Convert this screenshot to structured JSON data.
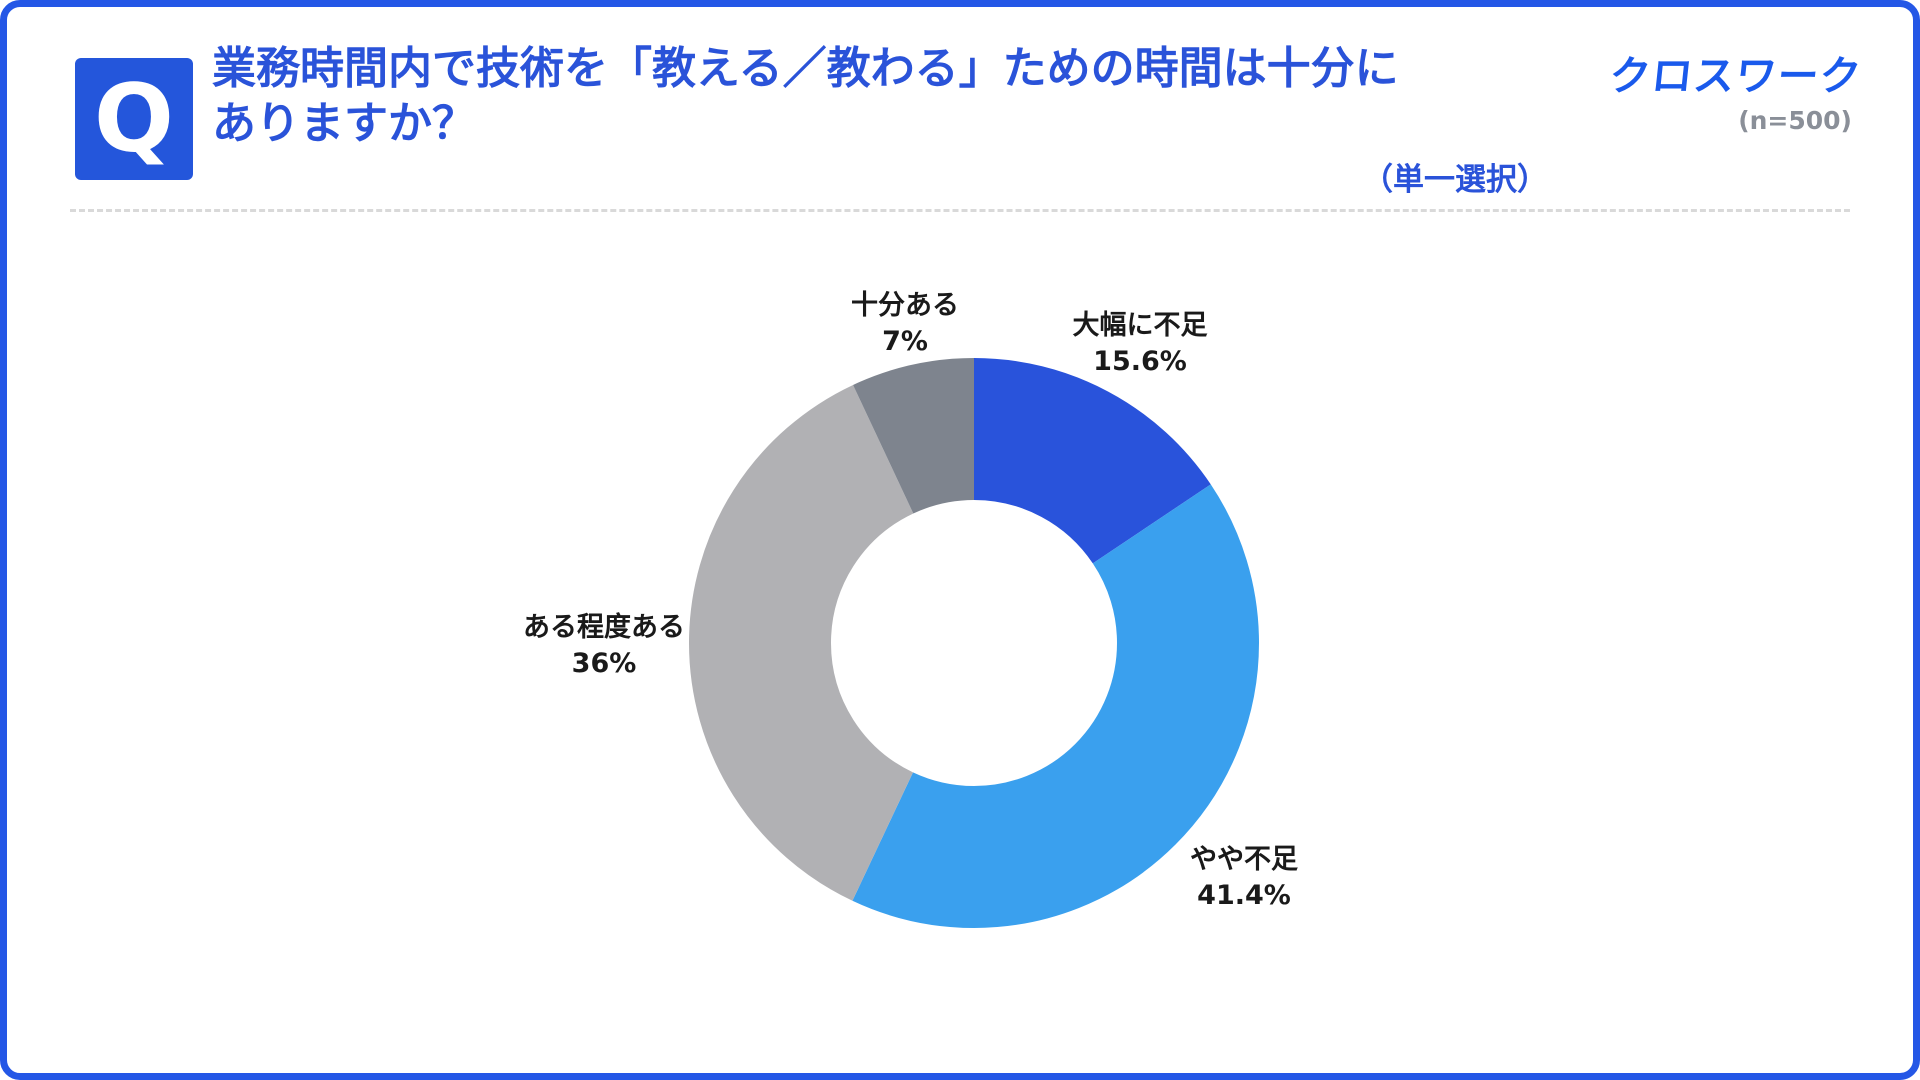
{
  "header": {
    "q_badge": "Q",
    "title_line1": "業務時間内で技術を「教える／教わる」ための時間は十分に",
    "title_line2": "ありますか？",
    "selection_note": "（単一選択）",
    "brand_logo": "クロスワーク",
    "sample_size": "(n=500)"
  },
  "chart_data": {
    "type": "pie",
    "subtype": "donut",
    "title": "業務時間内で技術を「教える／教わる」ための時間は十分にありますか？",
    "sample_n": "500",
    "categories": [
      "大幅に不足",
      "やや不足",
      "ある程度ある",
      "十分ある"
    ],
    "values": [
      15.6,
      41.4,
      36,
      7
    ],
    "colors": [
      "#2953DB",
      "#3AA0EE",
      "#B1B1B4",
      "#7E848E"
    ],
    "start_angle_deg": 0,
    "direction": "clockwise",
    "inner_radius_ratio": 0.5,
    "legend_position": "none",
    "labels": [
      {
        "name": "大幅に不足",
        "value": "15.6%"
      },
      {
        "name": "やや不足",
        "value": "41.4%"
      },
      {
        "name": "ある程度ある",
        "value": "36%"
      },
      {
        "name": "十分ある",
        "value": "7%"
      }
    ]
  }
}
